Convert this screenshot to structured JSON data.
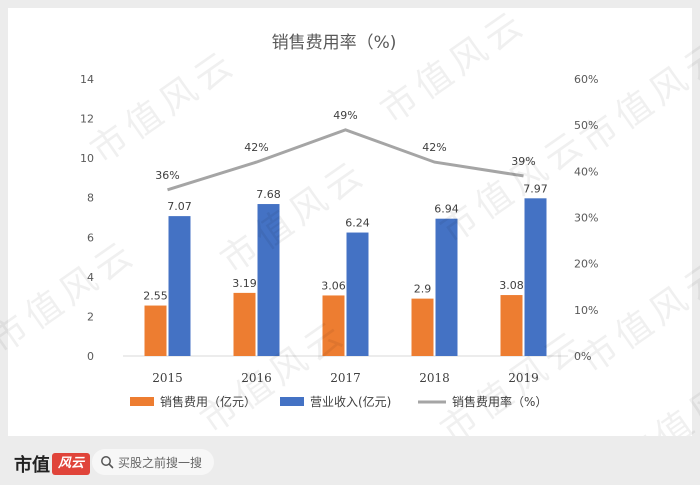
{
  "watermark": "市值风云",
  "chart_data": {
    "type": "bar",
    "title": "销售费用率（%)",
    "categories": [
      "2015",
      "2016",
      "2017",
      "2018",
      "2019"
    ],
    "series": [
      {
        "name": "销售费用（亿元）",
        "type": "bar",
        "axis": "left",
        "color": "#ed7d31",
        "values": [
          2.55,
          3.19,
          3.06,
          2.9,
          3.08
        ],
        "labels": [
          "2.55",
          "3.19",
          "3.06",
          "2.9",
          "3.08"
        ]
      },
      {
        "name": "营业收入(亿元)",
        "type": "bar",
        "axis": "left",
        "color": "#4472c4",
        "values": [
          7.07,
          7.68,
          6.24,
          6.94,
          7.97
        ],
        "labels": [
          "7.07",
          "7.68",
          "6.24",
          "6.94",
          "7.97"
        ]
      },
      {
        "name": "销售费用率（%）",
        "type": "line",
        "axis": "right",
        "color": "#a5a5a5",
        "values": [
          0.36,
          0.42,
          0.49,
          0.42,
          0.39
        ],
        "labels": [
          "36%",
          "42%",
          "49%",
          "42%",
          "39%"
        ]
      }
    ],
    "left_axis": {
      "ylim": [
        0,
        14
      ],
      "ticks": [
        "0",
        "2",
        "4",
        "6",
        "8",
        "10",
        "12",
        "14"
      ]
    },
    "right_axis": {
      "ylim": [
        0,
        0.6
      ],
      "ticks": [
        "0%",
        "10%",
        "20%",
        "30%",
        "40%",
        "50%",
        "60%"
      ]
    },
    "grid": false,
    "legend": "bottom"
  },
  "footer": {
    "brand": "市值",
    "brand_icon": "风云",
    "search_placeholder": "买股之前搜一搜"
  }
}
